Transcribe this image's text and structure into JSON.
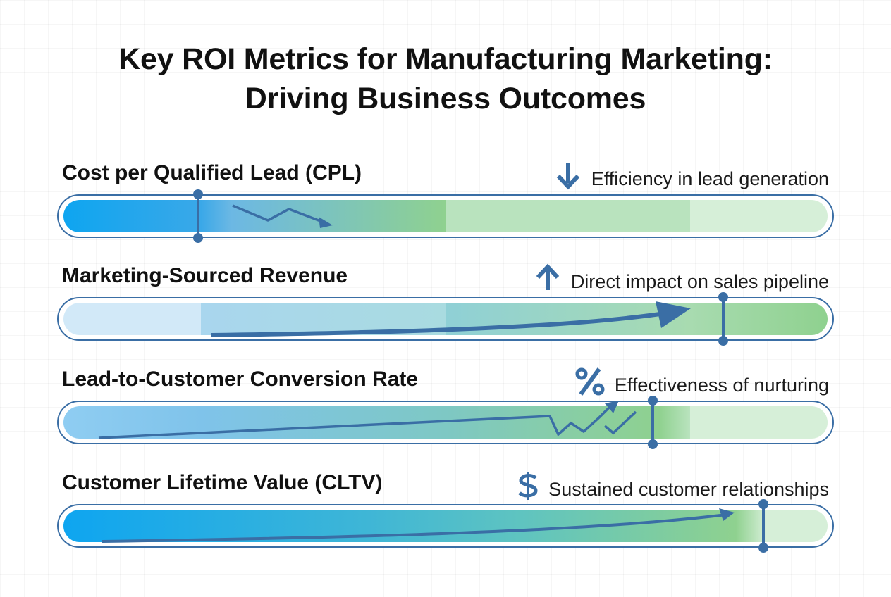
{
  "title": {
    "line1": "Key ROI Metrics for Manufacturing Marketing:",
    "line2": "Driving Business Outcomes"
  },
  "colors": {
    "accent": "#3a6ea5",
    "blue": "#0ea5f0",
    "green": "#8fd18f",
    "track_outline": "#3a6ea5"
  },
  "metrics": [
    {
      "name": "Cost per Qualified Lead (CPL)",
      "description": "Efficiency in lead generation",
      "icon": "arrow-down-icon",
      "trend": "down",
      "marker": 0.18
    },
    {
      "name": "Marketing-Sourced Revenue",
      "description": "Direct impact on sales pipeline",
      "icon": "arrow-up-icon",
      "trend": "up",
      "marker": 0.86
    },
    {
      "name": "Lead-to-Customer Conversion Rate",
      "description": "Effectiveness of nurturing",
      "icon": "percent-icon",
      "trend": "up",
      "marker": 0.77
    },
    {
      "name": "Customer Lifetime Value (CLTV)",
      "description": "Sustained customer relationships",
      "icon": "dollar-icon",
      "trend": "up",
      "marker": 0.91
    }
  ]
}
